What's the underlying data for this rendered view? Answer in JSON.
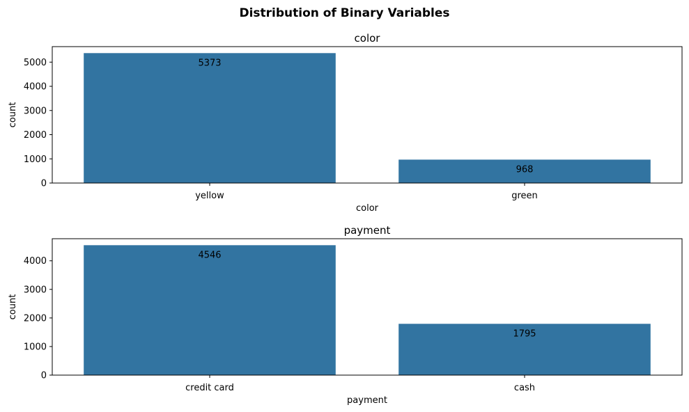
{
  "suptitle": "Distribution of Binary Variables",
  "chart_data": [
    {
      "type": "bar",
      "title": "color",
      "xlabel": "color",
      "ylabel": "count",
      "categories": [
        "yellow",
        "green"
      ],
      "values": [
        5373,
        968
      ],
      "bar_labels": [
        "5373",
        "968"
      ],
      "ylim": [
        0,
        5641
      ],
      "yticks": [
        0,
        1000,
        2000,
        3000,
        4000,
        5000
      ],
      "bar_color": "#3274a1",
      "grid": false,
      "legend": "none"
    },
    {
      "type": "bar",
      "title": "payment",
      "xlabel": "payment",
      "ylabel": "count",
      "categories": [
        "credit card",
        "cash"
      ],
      "values": [
        4546,
        1795
      ],
      "bar_labels": [
        "4546",
        "1795"
      ],
      "ylim": [
        0,
        4773
      ],
      "yticks": [
        0,
        1000,
        2000,
        3000,
        4000
      ],
      "bar_color": "#3274a1",
      "grid": false,
      "legend": "none"
    }
  ]
}
